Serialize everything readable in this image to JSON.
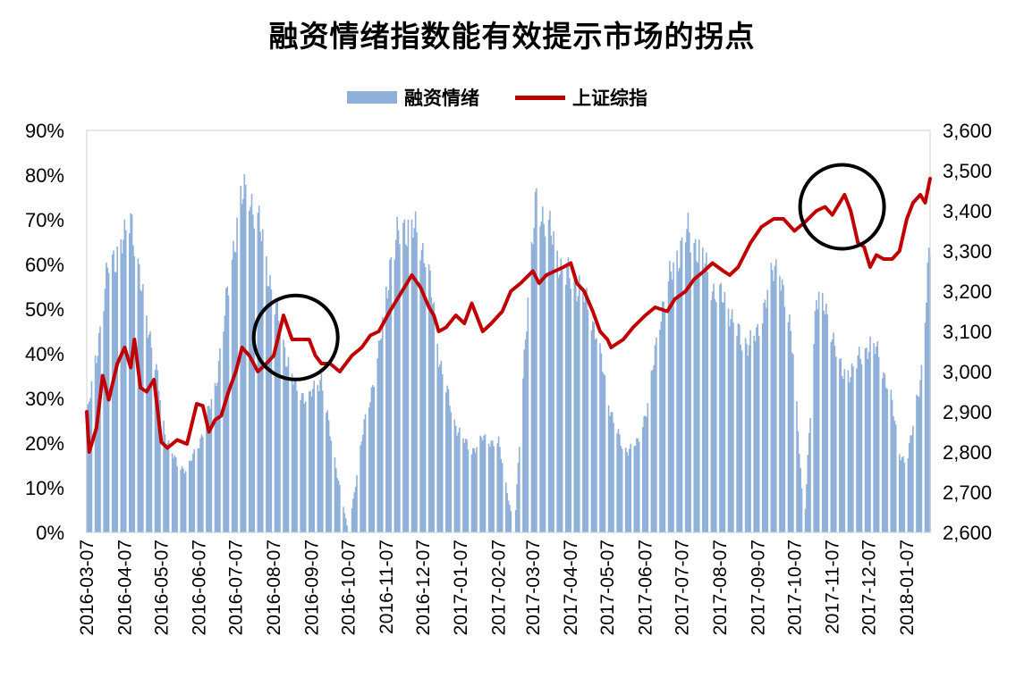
{
  "chart_data": {
    "type": "bar+line",
    "title": "融资情绪指数能有效提示市场的拐点",
    "legend": [
      {
        "name": "融资情绪",
        "kind": "bar",
        "color": "#8fb0d8"
      },
      {
        "name": "上证综指",
        "kind": "line",
        "color": "#c00000"
      }
    ],
    "legend_position": "top-center",
    "y_left": {
      "min": 0,
      "max": 90,
      "step": 10,
      "ticks": [
        "0%",
        "10%",
        "20%",
        "30%",
        "40%",
        "50%",
        "60%",
        "70%",
        "80%",
        "90%"
      ]
    },
    "y_right": {
      "min": 2600,
      "max": 3600,
      "step": 100,
      "ticks": [
        "2,600",
        "2,700",
        "2,800",
        "2,900",
        "3,000",
        "3,100",
        "3,200",
        "3,300",
        "3,400",
        "3,500",
        "3,600"
      ]
    },
    "x_ticks": [
      "2016-03-07",
      "2016-04-07",
      "2016-05-07",
      "2016-06-07",
      "2016-07-07",
      "2016-08-07",
      "2016-09-07",
      "2016-10-07",
      "2016-11-07",
      "2016-12-07",
      "2017-01-07",
      "2017-02-07",
      "2017-03-07",
      "2017-04-07",
      "2017-05-07",
      "2017-06-07",
      "2017-07-07",
      "2017-08-07",
      "2017-09-07",
      "2017-10-07",
      "2017-11-07",
      "2017-12-07",
      "2018-01-07"
    ],
    "grid": false,
    "sentiment_series": {
      "name": "融资情绪",
      "x": [
        "2016-03-07",
        "2016-03-15",
        "2016-03-25",
        "2016-04-07",
        "2016-04-12",
        "2016-04-20",
        "2016-05-01",
        "2016-05-10",
        "2016-05-20",
        "2016-05-28",
        "2016-06-07",
        "2016-06-20",
        "2016-07-01",
        "2016-07-10",
        "2016-07-18",
        "2016-07-25",
        "2016-08-05",
        "2016-08-15",
        "2016-08-25",
        "2016-09-05",
        "2016-09-15",
        "2016-09-22",
        "2016-10-07",
        "2016-10-20",
        "2016-11-01",
        "2016-11-10",
        "2016-11-20",
        "2016-12-01",
        "2016-12-10",
        "2016-12-20",
        "2017-01-01",
        "2017-01-15",
        "2017-01-25",
        "2017-02-07",
        "2017-02-20",
        "2017-03-01",
        "2017-03-10",
        "2017-03-20",
        "2017-04-01",
        "2017-04-15",
        "2017-04-28",
        "2017-05-07",
        "2017-05-20",
        "2017-06-01",
        "2017-06-10",
        "2017-06-20",
        "2017-07-01",
        "2017-07-10",
        "2017-07-20",
        "2017-08-01",
        "2017-08-15",
        "2017-08-25",
        "2017-09-07",
        "2017-09-15",
        "2017-09-25",
        "2017-10-07",
        "2017-10-15",
        "2017-10-25",
        "2017-11-07",
        "2017-11-15",
        "2017-11-25",
        "2017-12-07",
        "2017-12-15",
        "2017-12-25",
        "2018-01-01",
        "2018-01-07",
        "2018-01-15"
      ],
      "values": [
        25,
        40,
        60,
        65,
        72,
        55,
        40,
        22,
        15,
        14,
        20,
        32,
        55,
        74,
        76,
        70,
        55,
        42,
        32,
        30,
        35,
        22,
        0,
        24,
        40,
        60,
        69,
        67,
        62,
        40,
        25,
        18,
        21,
        20,
        0,
        45,
        75,
        68,
        58,
        55,
        45,
        30,
        18,
        20,
        30,
        50,
        60,
        67,
        64,
        55,
        50,
        42,
        44,
        55,
        60,
        38,
        0,
        54,
        45,
        35,
        37,
        42,
        40,
        30,
        18,
        15,
        30
      ]
    },
    "sentiment_tail": [
      {
        "x": "2018-01-20",
        "y": 37
      },
      {
        "x": "2018-01-24",
        "y": 57
      },
      {
        "x": "2018-01-26",
        "y": 65
      }
    ],
    "index_series": {
      "name": "上证综指",
      "x": [
        "2016-03-07",
        "2016-03-09",
        "2016-03-15",
        "2016-03-20",
        "2016-03-25",
        "2016-04-01",
        "2016-04-07",
        "2016-04-12",
        "2016-04-15",
        "2016-04-20",
        "2016-04-25",
        "2016-05-01",
        "2016-05-07",
        "2016-05-12",
        "2016-05-20",
        "2016-05-28",
        "2016-06-05",
        "2016-06-10",
        "2016-06-15",
        "2016-06-20",
        "2016-06-25",
        "2016-07-01",
        "2016-07-07",
        "2016-07-12",
        "2016-07-18",
        "2016-07-25",
        "2016-08-01",
        "2016-08-07",
        "2016-08-15",
        "2016-08-22",
        "2016-08-30",
        "2016-09-05",
        "2016-09-10",
        "2016-09-15",
        "2016-09-22",
        "2016-09-30",
        "2016-10-10",
        "2016-10-18",
        "2016-10-25",
        "2016-11-01",
        "2016-11-10",
        "2016-11-20",
        "2016-11-28",
        "2016-12-05",
        "2016-12-12",
        "2016-12-16",
        "2016-12-20",
        "2016-12-26",
        "2017-01-03",
        "2017-01-10",
        "2017-01-16",
        "2017-01-25",
        "2017-02-01",
        "2017-02-10",
        "2017-02-17",
        "2017-02-25",
        "2017-03-07",
        "2017-03-12",
        "2017-03-18",
        "2017-03-25",
        "2017-04-01",
        "2017-04-07",
        "2017-04-12",
        "2017-04-18",
        "2017-04-25",
        "2017-05-01",
        "2017-05-07",
        "2017-05-10",
        "2017-05-20",
        "2017-05-28",
        "2017-06-07",
        "2017-06-15",
        "2017-06-25",
        "2017-07-01",
        "2017-07-10",
        "2017-07-17",
        "2017-07-25",
        "2017-08-01",
        "2017-08-10",
        "2017-08-15",
        "2017-08-22",
        "2017-09-01",
        "2017-09-10",
        "2017-09-20",
        "2017-09-28",
        "2017-10-07",
        "2017-10-15",
        "2017-10-25",
        "2017-11-01",
        "2017-11-07",
        "2017-11-13",
        "2017-11-17",
        "2017-11-22",
        "2017-11-28",
        "2017-12-03",
        "2017-12-08",
        "2017-12-13",
        "2017-12-19",
        "2017-12-26",
        "2018-01-01",
        "2018-01-07",
        "2018-01-12",
        "2018-01-18",
        "2018-01-22",
        "2018-01-26"
      ],
      "values": [
        2900,
        2800,
        2860,
        2990,
        2930,
        3020,
        3060,
        3010,
        3080,
        2960,
        2950,
        2980,
        2825,
        2810,
        2830,
        2820,
        2920,
        2915,
        2850,
        2880,
        2890,
        2950,
        3000,
        3060,
        3040,
        3000,
        3020,
        3040,
        3140,
        3080,
        3080,
        3080,
        3040,
        3020,
        3020,
        3000,
        3040,
        3060,
        3090,
        3100,
        3150,
        3200,
        3240,
        3210,
        3160,
        3140,
        3100,
        3110,
        3140,
        3120,
        3170,
        3100,
        3120,
        3150,
        3200,
        3220,
        3250,
        3220,
        3240,
        3250,
        3260,
        3270,
        3220,
        3200,
        3150,
        3100,
        3080,
        3060,
        3080,
        3110,
        3140,
        3160,
        3150,
        3180,
        3200,
        3230,
        3250,
        3270,
        3250,
        3240,
        3260,
        3320,
        3360,
        3380,
        3380,
        3350,
        3370,
        3400,
        3410,
        3390,
        3420,
        3440,
        3400,
        3320,
        3310,
        3260,
        3290,
        3280,
        3280,
        3300,
        3380,
        3420,
        3440,
        3420,
        3480
      ]
    },
    "annotations": [
      {
        "shape": "circle",
        "around": "2016-08-25 peak"
      },
      {
        "shape": "circle",
        "around": "2017-11-15 peak"
      }
    ]
  }
}
